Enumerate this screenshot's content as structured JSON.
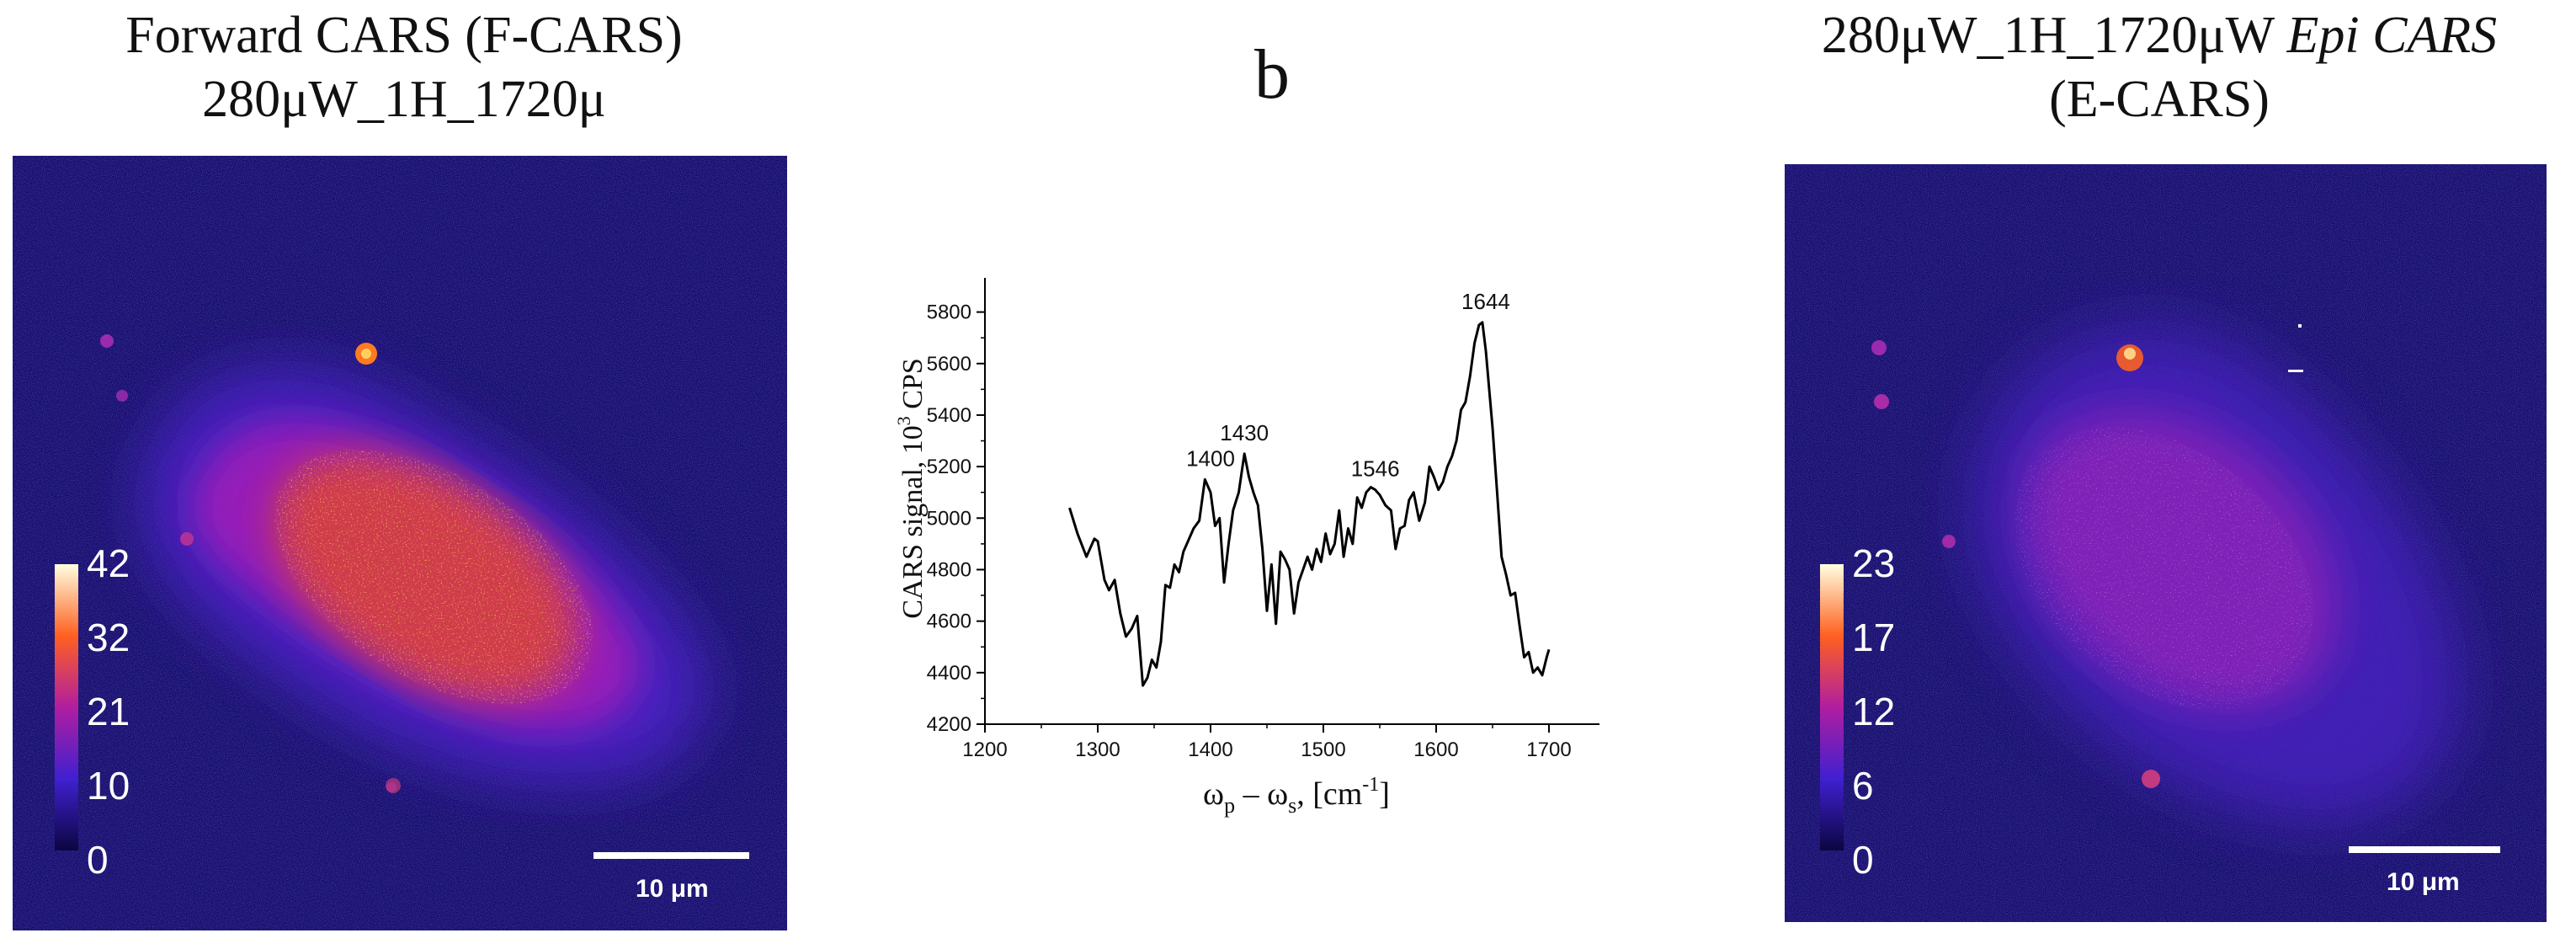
{
  "left_panel": {
    "title_line1": "Forward CARS (F-CARS)",
    "title_line2": "280μW_1H_1720μ",
    "colorbar_ticks": [
      "42",
      "32",
      "21",
      "10",
      "0"
    ],
    "scale_bar": "10 μm"
  },
  "center_panel": {
    "letter": "b"
  },
  "right_panel": {
    "title_line1_plain": "280μW_1H_1720μW ",
    "title_line1_italic": "Epi CARS",
    "title_line2": "(E-CARS)",
    "colorbar_ticks": [
      "23",
      "17",
      "12",
      "6",
      "0"
    ],
    "scale_bar": "10 μm"
  },
  "colors": {
    "image_bg": "#14106a",
    "cell_low": "#4a22c4",
    "cell_mid": "#a01fb8",
    "cell_high": "#e8481c",
    "cell_peak": "#ffb000",
    "line": "#000000"
  },
  "chart_data": {
    "type": "line",
    "xlabel_main": "ω",
    "xlabel_sub_p": "p",
    "xlabel_minus": " – ω",
    "xlabel_sub_s": "s",
    "xlabel_unit": ", [cm",
    "xlabel_sup": "-1",
    "xlabel_close": "]",
    "ylabel_pre": "CARS signal, 10",
    "ylabel_sup": "3",
    "ylabel_post": " CPS",
    "xlim": [
      1200,
      1700
    ],
    "ylim": [
      4200,
      5900
    ],
    "x_ticks": [
      1200,
      1300,
      1400,
      1500,
      1600,
      1700
    ],
    "y_ticks": [
      4200,
      4400,
      4600,
      4800,
      5000,
      5200,
      5400,
      5600,
      5800
    ],
    "peaks": [
      {
        "x": 1400,
        "y": 5150,
        "label": "1400"
      },
      {
        "x": 1430,
        "y": 5250,
        "label": "1430"
      },
      {
        "x": 1546,
        "y": 5110,
        "label": "1546"
      },
      {
        "x": 1644,
        "y": 5760,
        "label": "1644"
      }
    ],
    "series": [
      {
        "x": [
          1275,
          1282,
          1290,
          1297,
          1300,
          1306,
          1310,
          1315,
          1320,
          1325,
          1330,
          1335,
          1340,
          1344,
          1348,
          1352,
          1356,
          1360,
          1364,
          1368,
          1372,
          1376,
          1380,
          1385,
          1390,
          1395,
          1400,
          1404,
          1408,
          1412,
          1416,
          1420,
          1425,
          1430,
          1434,
          1438,
          1442,
          1446,
          1450,
          1454,
          1458,
          1462,
          1466,
          1470,
          1474,
          1478,
          1482,
          1486,
          1490,
          1494,
          1498,
          1502,
          1506,
          1510,
          1514,
          1518,
          1522,
          1526,
          1530,
          1534,
          1538,
          1542,
          1546,
          1550,
          1555,
          1560,
          1564,
          1568,
          1572,
          1576,
          1580,
          1585,
          1590,
          1594,
          1598,
          1602,
          1606,
          1610,
          1614,
          1618,
          1622,
          1626,
          1630,
          1634,
          1638,
          1641,
          1644,
          1647,
          1650,
          1654,
          1658,
          1662,
          1666,
          1670,
          1674,
          1678,
          1682,
          1686,
          1690,
          1694,
          1698,
          1700
        ],
        "y": [
          5040,
          4940,
          4850,
          4920,
          4910,
          4760,
          4720,
          4760,
          4630,
          4540,
          4570,
          4620,
          4350,
          4380,
          4450,
          4420,
          4520,
          4740,
          4730,
          4820,
          4790,
          4870,
          4910,
          4960,
          4990,
          5150,
          5100,
          4970,
          5000,
          4750,
          4900,
          5030,
          5100,
          5250,
          5160,
          5100,
          5050,
          4880,
          4640,
          4820,
          4590,
          4870,
          4840,
          4800,
          4630,
          4750,
          4800,
          4850,
          4800,
          4880,
          4830,
          4940,
          4860,
          4900,
          5030,
          4850,
          4960,
          4900,
          5080,
          5040,
          5100,
          5120,
          5110,
          5090,
          5050,
          5030,
          4880,
          4960,
          4970,
          5070,
          5100,
          4990,
          5060,
          5200,
          5160,
          5110,
          5140,
          5200,
          5240,
          5300,
          5420,
          5450,
          5550,
          5680,
          5750,
          5760,
          5650,
          5500,
          5350,
          5100,
          4850,
          4780,
          4700,
          4710,
          4580,
          4460,
          4480,
          4400,
          4420,
          4390,
          4460,
          4490
        ]
      }
    ]
  }
}
